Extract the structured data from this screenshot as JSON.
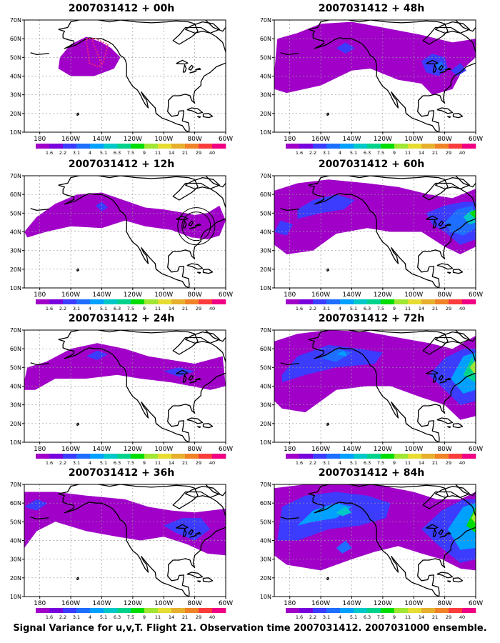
{
  "base_time": "2007031412",
  "panels": [
    {
      "title": "2007031412 + 00h",
      "lead": "00h"
    },
    {
      "title": "2007031412 + 48h",
      "lead": "48h"
    },
    {
      "title": "2007031412 + 12h",
      "lead": "12h"
    },
    {
      "title": "2007031412 + 60h",
      "lead": "60h"
    },
    {
      "title": "2007031412 + 24h",
      "lead": "24h"
    },
    {
      "title": "2007031412 + 72h",
      "lead": "72h"
    },
    {
      "title": "2007031412 + 36h",
      "lead": "36h"
    },
    {
      "title": "2007031412 + 84h",
      "lead": "84h"
    }
  ],
  "axes": {
    "lat_labels": [
      "70N",
      "60N",
      "50N",
      "40N",
      "30N",
      "20N",
      "10N"
    ],
    "lon_labels": [
      "180",
      "160W",
      "140W",
      "120W",
      "100W",
      "80W",
      "60W"
    ]
  },
  "colorbar": {
    "labels": [
      "1.6",
      "2.2",
      "3.1",
      "4",
      "5.1",
      "6.3",
      "7.5",
      "9",
      "11",
      "14",
      "21",
      "29",
      "40"
    ],
    "colors": [
      "#a000c8",
      "#7800dc",
      "#3c3cff",
      "#1e6eff",
      "#00a0ff",
      "#00c8c8",
      "#00d28c",
      "#00dc00",
      "#a0e632",
      "#e6dc32",
      "#e6af2d",
      "#f08228",
      "#fa3c3c",
      "#f00082"
    ]
  },
  "footer": "Signal Variance for u,v,T. Flight 21. Observation time 2007031412. 2007031000 ensemble."
}
